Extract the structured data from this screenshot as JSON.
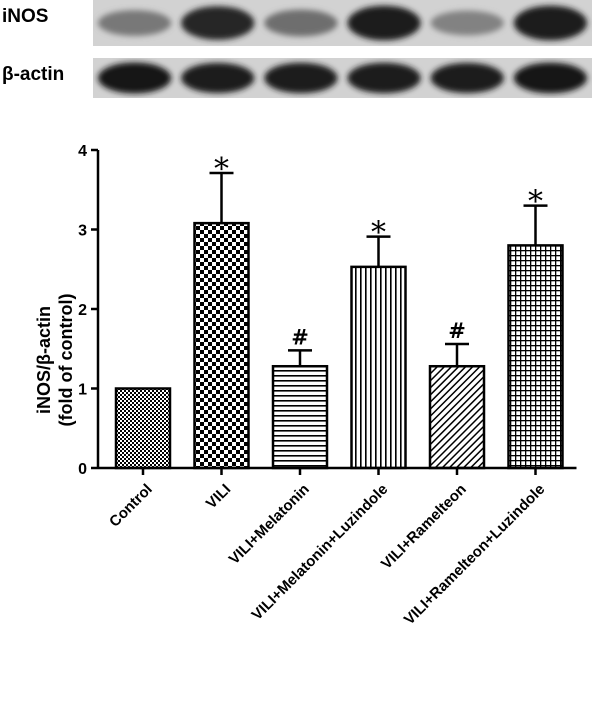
{
  "blot": {
    "rows": [
      {
        "label": "iNOS",
        "band_darkness": [
          0.45,
          0.85,
          0.5,
          0.9,
          0.4,
          0.9
        ]
      },
      {
        "label": "β-actin",
        "band_darkness": [
          0.95,
          0.9,
          0.92,
          0.92,
          0.9,
          0.93
        ]
      }
    ]
  },
  "chart_data": {
    "type": "bar",
    "categories": [
      "Control",
      "VILI",
      "VILI+Melatonin",
      "VILI+Melatonin+Luzindole",
      "VILI+Ramelteon",
      "VILI+Ramelteon+Luzindole"
    ],
    "values": [
      1.0,
      3.08,
      1.28,
      2.53,
      1.28,
      2.8
    ],
    "errors": [
      0.0,
      0.63,
      0.2,
      0.38,
      0.28,
      0.5
    ],
    "significance": [
      "",
      "*",
      "#",
      "*",
      "#",
      "*"
    ],
    "patterns": [
      "checker-fine",
      "checker-large",
      "horizontal-lines",
      "vertical-lines",
      "diagonal-lines",
      "grid"
    ],
    "ylabel_line1": "iNOS/β-actin",
    "ylabel_line2": "(fold of control)",
    "ylim": [
      0,
      4
    ],
    "yticks": [
      "0",
      "1",
      "2",
      "3",
      "4"
    ],
    "grid": false,
    "legend": "none"
  }
}
